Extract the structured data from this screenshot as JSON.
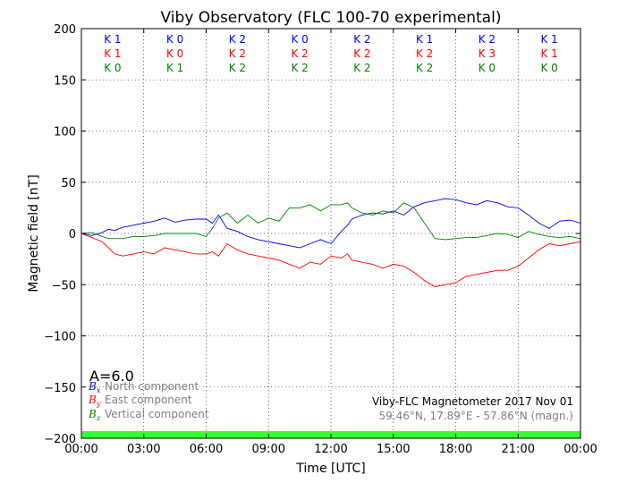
{
  "chart_data": {
    "type": "line",
    "title": "Viby Observatory (FLC 100-70 experimental)",
    "xlabel": "Time [UTC]",
    "ylabel": "Magnetic field [nT]",
    "xlim": [
      0,
      24
    ],
    "ylim": [
      -200,
      200
    ],
    "xticks": [
      0,
      3,
      6,
      9,
      12,
      15,
      18,
      21,
      24
    ],
    "xtick_labels": [
      "00:00",
      "03:00",
      "06:00",
      "09:00",
      "12:00",
      "15:00",
      "18:00",
      "21:00",
      "00:00"
    ],
    "yticks": [
      -200,
      -150,
      -100,
      -50,
      0,
      50,
      100,
      150,
      200
    ],
    "ytick_labels": [
      "−200",
      "−150",
      "−100",
      "−50",
      "0",
      "50",
      "100",
      "150",
      "200"
    ],
    "grid": true,
    "legend_position": "bottom-left",
    "colors": {
      "north": "#0000ff",
      "east": "#ff0000",
      "vertical": "#008000",
      "status_bar": "#33ff33"
    },
    "k_indices": {
      "x_centers": [
        1.5,
        4.5,
        7.5,
        10.5,
        13.5,
        16.5,
        19.5,
        22.5
      ],
      "north": [
        "K 1",
        "K 0",
        "K 2",
        "K 0",
        "K 2",
        "K 1",
        "K 2",
        "K 1"
      ],
      "east": [
        "K 1",
        "K 0",
        "K 2",
        "K 2",
        "K 2",
        "K 2",
        "K 3",
        "K 1"
      ],
      "vertical": [
        "K 0",
        "K 1",
        "K 2",
        "K 2",
        "K 2",
        "K 2",
        "K 0",
        "K 0"
      ]
    },
    "a_index_label": "A=6.0",
    "series": [
      {
        "name": "North component",
        "symbol": "B",
        "subscript": "x",
        "color": "#0000ff",
        "x": [
          0,
          0.5,
          1,
          1.3,
          1.6,
          2,
          2.5,
          3,
          3.5,
          4,
          4.5,
          5,
          5.5,
          6,
          6.3,
          6.6,
          7,
          7.5,
          8,
          8.5,
          9,
          9.5,
          10,
          10.5,
          11,
          11.5,
          12,
          12.5,
          12.8,
          13,
          13.5,
          14,
          14.5,
          15,
          15.5,
          16,
          16.5,
          17,
          17.5,
          18,
          18.5,
          19,
          19.5,
          20,
          20.5,
          21,
          21.5,
          22,
          22.5,
          23,
          23.5,
          24
        ],
        "y": [
          0,
          -2,
          1,
          4,
          3,
          6,
          8,
          10,
          12,
          15,
          11,
          13,
          14,
          14,
          10,
          18,
          5,
          2,
          -3,
          -6,
          -8,
          -10,
          -12,
          -14,
          -10,
          -6,
          -10,
          2,
          8,
          14,
          18,
          20,
          19,
          22,
          18,
          26,
          30,
          32,
          34,
          33,
          30,
          28,
          32,
          30,
          26,
          25,
          18,
          10,
          5,
          12,
          13,
          10
        ]
      },
      {
        "name": "East component",
        "symbol": "B",
        "subscript": "y",
        "color": "#ff0000",
        "x": [
          0,
          0.5,
          1,
          1.3,
          1.6,
          2,
          2.5,
          3,
          3.5,
          4,
          4.5,
          5,
          5.5,
          6,
          6.3,
          6.6,
          7,
          7.5,
          8,
          8.5,
          9,
          9.5,
          10,
          10.5,
          11,
          11.5,
          12,
          12.5,
          12.8,
          13,
          13.5,
          14,
          14.5,
          15,
          15.5,
          16,
          16.5,
          17,
          17.5,
          18,
          18.5,
          19,
          19.5,
          20,
          20.5,
          21,
          21.5,
          22,
          22.5,
          23,
          23.5,
          24
        ],
        "y": [
          0,
          -4,
          -8,
          -14,
          -20,
          -22,
          -20,
          -18,
          -20,
          -14,
          -16,
          -18,
          -20,
          -20,
          -18,
          -22,
          -10,
          -16,
          -20,
          -22,
          -24,
          -26,
          -30,
          -34,
          -28,
          -30,
          -22,
          -24,
          -20,
          -26,
          -28,
          -30,
          -34,
          -30,
          -32,
          -38,
          -46,
          -52,
          -50,
          -48,
          -42,
          -40,
          -38,
          -36,
          -36,
          -32,
          -24,
          -16,
          -10,
          -12,
          -10,
          -8
        ]
      },
      {
        "name": "Vertical component",
        "symbol": "B",
        "subscript": "z",
        "color": "#008000",
        "x": [
          0,
          0.5,
          1,
          1.3,
          1.6,
          2,
          2.5,
          3,
          3.5,
          4,
          4.5,
          5,
          5.5,
          6,
          6.3,
          6.6,
          7,
          7.5,
          8,
          8.5,
          9,
          9.5,
          10,
          10.5,
          11,
          11.5,
          12,
          12.5,
          12.8,
          13,
          13.5,
          14,
          14.5,
          15,
          15.5,
          16,
          16.5,
          17,
          17.5,
          18,
          18.5,
          19,
          19.5,
          20,
          20.5,
          21,
          21.5,
          22,
          22.5,
          23,
          23.5,
          24
        ],
        "y": [
          0,
          1,
          -3,
          -5,
          -5,
          -5,
          -3,
          -3,
          -2,
          0,
          0,
          0,
          0,
          -3,
          5,
          15,
          20,
          10,
          18,
          10,
          15,
          12,
          25,
          25,
          28,
          22,
          28,
          28,
          30,
          25,
          20,
          18,
          22,
          20,
          30,
          25,
          10,
          -5,
          -6,
          -5,
          -4,
          -4,
          -2,
          0,
          -1,
          -4,
          2,
          -1,
          -3,
          -4,
          -3,
          -5
        ]
      }
    ],
    "annotations": {
      "station": "Viby-FLC Magnetometer 2017 Nov 01",
      "coordinates": "59.46°N, 17.89°E - 57.86°N (magn.)"
    }
  }
}
